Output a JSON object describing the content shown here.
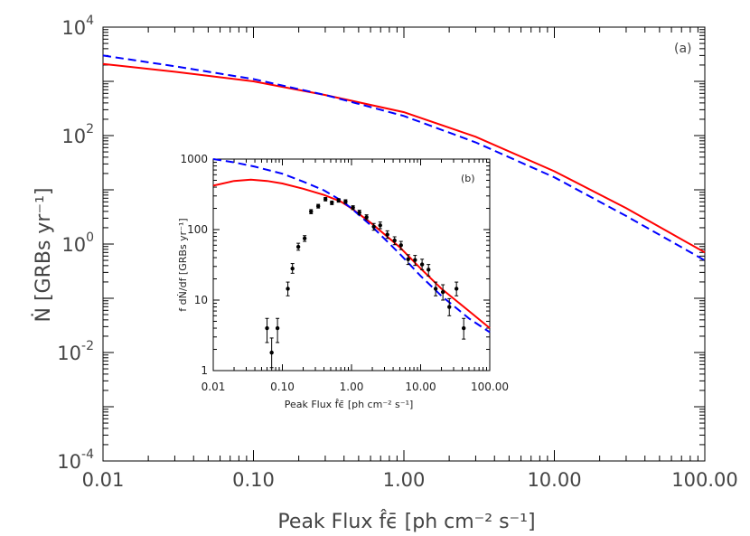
{
  "chart_data": [
    {
      "type": "line",
      "panel_label": "(a)",
      "xlabel": "Peak Flux f̂ϵ̄ [ph cm⁻² s⁻¹]",
      "ylabel": "Ṅ [GRBs yr⁻¹]",
      "x_scale": "log",
      "y_scale": "log",
      "xlim": [
        0.01,
        100
      ],
      "ylim": [
        0.0001,
        10000
      ],
      "x_ticks": [
        {
          "value": 0.01,
          "label": "0.01"
        },
        {
          "value": 0.1,
          "label": "0.10"
        },
        {
          "value": 1,
          "label": "1.00"
        },
        {
          "value": 10,
          "label": "10.00"
        },
        {
          "value": 100,
          "label": "100.00"
        }
      ],
      "y_ticks": [
        {
          "value": 0.0001,
          "base": "10",
          "exp": "-4"
        },
        {
          "value": 0.01,
          "base": "10",
          "exp": "-2"
        },
        {
          "value": 1,
          "base": "10",
          "exp": "0"
        },
        {
          "value": 100,
          "base": "10",
          "exp": "2"
        },
        {
          "value": 10000,
          "base": "10",
          "exp": "4"
        }
      ],
      "series": [
        {
          "style": "solid",
          "color": "#ff0000",
          "x": [
            0.01,
            0.03,
            0.1,
            0.3,
            1,
            3,
            10,
            30,
            100
          ],
          "y": [
            2100,
            1500,
            1000,
            560,
            270,
            95,
            22,
            4.6,
            0.7
          ]
        },
        {
          "style": "dashed",
          "color": "#0000ff",
          "x": [
            0.01,
            0.03,
            0.1,
            0.3,
            1,
            3,
            10,
            30,
            100
          ],
          "y": [
            3000,
            1900,
            1100,
            560,
            230,
            75,
            17,
            3.3,
            0.5
          ]
        }
      ]
    },
    {
      "type": "scatter",
      "panel_label": "(b)",
      "xlabel": "Peak Flux f̂ϵ̄ [ph cm⁻² s⁻¹]",
      "ylabel": "f dṄ/df [GRBs yr⁻¹]",
      "x_scale": "log",
      "y_scale": "log",
      "xlim": [
        0.01,
        100
      ],
      "ylim": [
        1,
        1000
      ],
      "x_ticks": [
        {
          "value": 0.01,
          "label": "0.01"
        },
        {
          "value": 0.1,
          "label": "0.10"
        },
        {
          "value": 1,
          "label": "1.00"
        },
        {
          "value": 10,
          "label": "10.00"
        },
        {
          "value": 100,
          "label": "100.00"
        }
      ],
      "y_ticks": [
        {
          "value": 1,
          "label": "1"
        },
        {
          "value": 10,
          "label": "10"
        },
        {
          "value": 100,
          "label": "100"
        },
        {
          "value": 1000,
          "label": "1000"
        }
      ],
      "series": [
        {
          "style": "solid",
          "color": "#ff0000",
          "x": [
            0.01,
            0.02,
            0.035,
            0.06,
            0.1,
            0.2,
            0.4,
            0.7,
            1,
            2,
            5,
            10,
            20,
            50,
            100
          ],
          "y": [
            420,
            490,
            510,
            490,
            450,
            380,
            310,
            250,
            200,
            120,
            56,
            28,
            14.5,
            7,
            4
          ]
        },
        {
          "style": "dashed",
          "color": "#0000ff",
          "x": [
            0.01,
            0.02,
            0.04,
            0.1,
            0.2,
            0.4,
            0.7,
            1,
            2,
            5,
            10,
            20,
            50,
            100
          ],
          "y": [
            1000,
            900,
            780,
            620,
            480,
            360,
            260,
            200,
            110,
            45,
            22,
            11.5,
            5.5,
            3.5
          ]
        },
        {
          "style": "points",
          "color": "#000000",
          "points": [
            {
              "x": 0.06,
              "y": 4,
              "lo": 2.5,
              "hi": 5.5
            },
            {
              "x": 0.07,
              "y": 1.8,
              "lo": 1.1,
              "hi": 2.9
            },
            {
              "x": 0.085,
              "y": 4,
              "lo": 2.5,
              "hi": 5.5
            },
            {
              "x": 0.12,
              "y": 14.5,
              "lo": 11.5,
              "hi": 18
            },
            {
              "x": 0.14,
              "y": 28,
              "lo": 24,
              "hi": 33
            },
            {
              "x": 0.17,
              "y": 57,
              "lo": 51,
              "hi": 64
            },
            {
              "x": 0.21,
              "y": 75,
              "lo": 68,
              "hi": 82
            },
            {
              "x": 0.26,
              "y": 180,
              "lo": 168,
              "hi": 192
            },
            {
              "x": 0.33,
              "y": 215,
              "lo": 202,
              "hi": 228
            },
            {
              "x": 0.42,
              "y": 270,
              "lo": 255,
              "hi": 285
            },
            {
              "x": 0.52,
              "y": 240,
              "lo": 226,
              "hi": 254
            },
            {
              "x": 0.65,
              "y": 260,
              "lo": 245,
              "hi": 275
            },
            {
              "x": 0.82,
              "y": 250,
              "lo": 235,
              "hi": 265
            },
            {
              "x": 1.05,
              "y": 205,
              "lo": 192,
              "hi": 218
            },
            {
              "x": 1.3,
              "y": 175,
              "lo": 162,
              "hi": 188
            },
            {
              "x": 1.65,
              "y": 150,
              "lo": 138,
              "hi": 162
            },
            {
              "x": 2.1,
              "y": 110,
              "lo": 98,
              "hi": 122
            },
            {
              "x": 2.6,
              "y": 115,
              "lo": 103,
              "hi": 128
            },
            {
              "x": 3.3,
              "y": 85,
              "lo": 75,
              "hi": 96
            },
            {
              "x": 4.2,
              "y": 70,
              "lo": 61,
              "hi": 79
            },
            {
              "x": 5.2,
              "y": 60,
              "lo": 52,
              "hi": 68
            },
            {
              "x": 6.6,
              "y": 38,
              "lo": 32,
              "hi": 44
            },
            {
              "x": 8.3,
              "y": 37,
              "lo": 31,
              "hi": 43
            },
            {
              "x": 10.5,
              "y": 32,
              "lo": 27,
              "hi": 38
            },
            {
              "x": 13,
              "y": 27,
              "lo": 22,
              "hi": 32
            },
            {
              "x": 16.5,
              "y": 14.5,
              "lo": 11.5,
              "hi": 18
            },
            {
              "x": 21,
              "y": 13,
              "lo": 10,
              "hi": 16.5
            },
            {
              "x": 26,
              "y": 8,
              "lo": 6,
              "hi": 10.5
            },
            {
              "x": 33,
              "y": 14.5,
              "lo": 11.5,
              "hi": 18
            },
            {
              "x": 42,
              "y": 4,
              "lo": 2.8,
              "hi": 5.5
            }
          ]
        }
      ]
    }
  ]
}
